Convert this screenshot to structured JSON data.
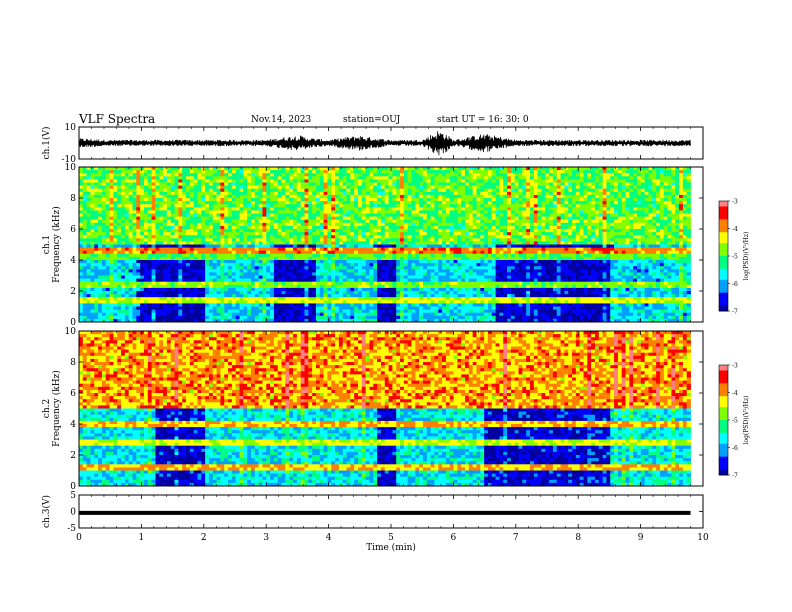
{
  "header": {
    "title": "VLF Spectra",
    "date": "Nov.14, 2023",
    "station": "station=OUJ",
    "start_ut": "start UT =  16: 30: 0"
  },
  "colors": {
    "cmap": [
      "#0000a0",
      "#0000ff",
      "#00a0ff",
      "#00ffff",
      "#00ff80",
      "#80ff00",
      "#ffff00",
      "#ff8000",
      "#ff0000",
      "#ff8080",
      "#ffffff"
    ],
    "trace": "#000000"
  },
  "chart_data": [
    {
      "type": "line",
      "title": "",
      "ylabel": "ch.1(V)",
      "ylim": [
        -10,
        10
      ],
      "yticks": [
        "10",
        "-10"
      ],
      "x": [
        0,
        0.5,
        1,
        1.5,
        2,
        2.5,
        3,
        3.5,
        3.75,
        4,
        4.5,
        4.6,
        5,
        5.5,
        5.75,
        5.85,
        6,
        6.5,
        7,
        7.5,
        8,
        8.5,
        9,
        9.5,
        9.8
      ],
      "y": [
        3,
        2,
        2,
        2,
        2,
        2,
        2,
        5,
        3,
        2,
        5,
        4,
        2,
        2,
        8,
        7,
        2,
        6,
        2,
        2,
        2,
        2,
        2,
        2,
        2
      ],
      "note": "waveform envelope amplitude (V)"
    },
    {
      "type": "heatmap",
      "title": "",
      "ylabel": "ch.1\nFrequency (kHz)",
      "xlim": [
        0,
        10
      ],
      "ylim": [
        0,
        10
      ],
      "yticks": [
        "10",
        "8",
        "6",
        "4",
        "2",
        "0"
      ],
      "colorbar": {
        "label": "log(PSD)(V²/Hz)",
        "range": [
          -7,
          -3
        ],
        "ticks": [
          "-3",
          "-4",
          "-5",
          "-6",
          "-7"
        ]
      },
      "bands": [
        {
          "f": 1.4,
          "intensity": 0.62
        },
        {
          "f": 2.4,
          "intensity": 0.55
        },
        {
          "f": 4.2,
          "intensity": 0.52
        },
        {
          "f": 4.6,
          "intensity": 0.75
        }
      ],
      "quiet_intervals": [
        [
          0.9,
          2.0
        ],
        [
          3.1,
          3.8
        ],
        [
          4.8,
          5.1
        ],
        [
          6.7,
          8.5
        ]
      ],
      "background_level": 0.52,
      "low_freq_level": 0.2
    },
    {
      "type": "heatmap",
      "title": "",
      "ylabel": "ch.2\nFrequency (kHz)",
      "xlim": [
        0,
        10
      ],
      "ylim": [
        0,
        10
      ],
      "yticks": [
        "10",
        "8",
        "6",
        "4",
        "2",
        "0"
      ],
      "colorbar": {
        "label": "log(PSD)(V²/Hz)",
        "range": [
          -7,
          -3
        ],
        "ticks": [
          "-3",
          "-4",
          "-5",
          "-6",
          "-7"
        ]
      },
      "bands": [
        {
          "f": 1.2,
          "intensity": 0.7
        },
        {
          "f": 2.8,
          "intensity": 0.62
        },
        {
          "f": 4.0,
          "intensity": 0.7
        }
      ],
      "quiet_intervals": [
        [
          1.2,
          2.0
        ],
        [
          4.8,
          5.1
        ],
        [
          6.5,
          8.5
        ]
      ],
      "background_level": 0.72,
      "low_freq_level": 0.22
    },
    {
      "type": "line",
      "title": "",
      "ylabel": "ch.3(V)",
      "xlabel": "Time (min)",
      "ylim": [
        -5,
        5
      ],
      "yticks": [
        "5",
        "0",
        "-5"
      ],
      "x": [
        0,
        9.8
      ],
      "y": [
        -0.4,
        -0.4
      ],
      "xticks": [
        "0",
        "1",
        "2",
        "3",
        "4",
        "5",
        "6",
        "7",
        "8",
        "9",
        "10"
      ]
    }
  ]
}
